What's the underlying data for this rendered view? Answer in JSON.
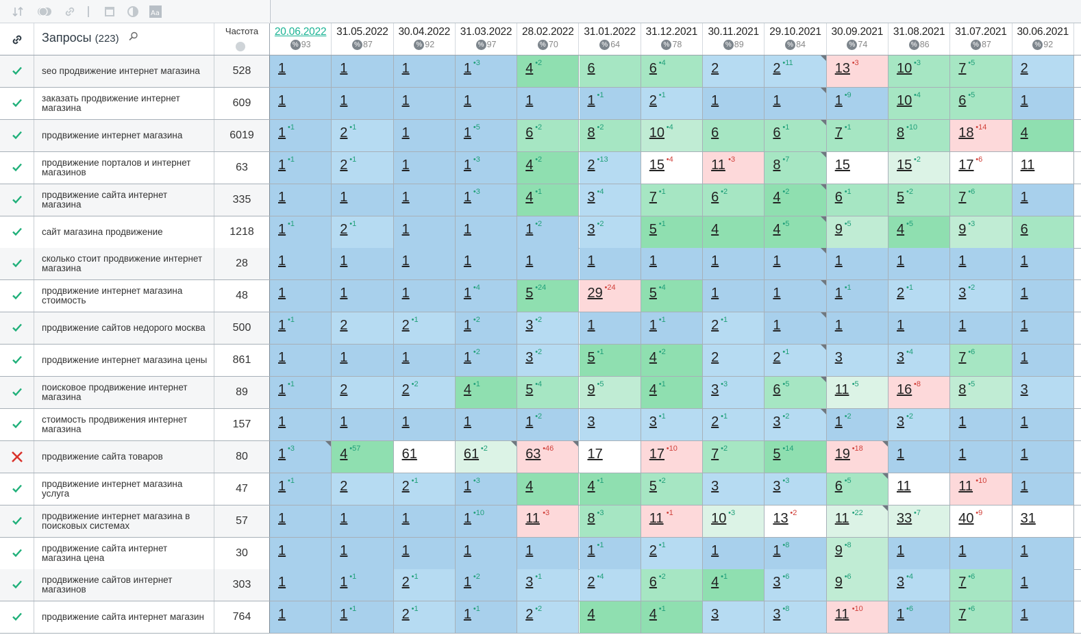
{
  "toolbar": {
    "icons": [
      "sort-icon",
      "toggle-icon",
      "link-icon",
      "calendar-icon",
      "contrast-icon",
      "font-icon"
    ]
  },
  "header": {
    "queries_label": "Запросы",
    "queries_count": "(223)",
    "frequency_label": "Частота",
    "dates": [
      {
        "date": "20.06.2022",
        "pct": "93",
        "active": true
      },
      {
        "date": "31.05.2022",
        "pct": "87"
      },
      {
        "date": "30.04.2022",
        "pct": "92"
      },
      {
        "date": "31.03.2022",
        "pct": "97"
      },
      {
        "date": "28.02.2022",
        "pct": "70"
      },
      {
        "date": "31.01.2022",
        "pct": "64"
      },
      {
        "date": "31.12.2021",
        "pct": "78"
      },
      {
        "date": "30.11.2021",
        "pct": "89"
      },
      {
        "date": "29.10.2021",
        "pct": "84"
      },
      {
        "date": "30.09.2021",
        "pct": "74"
      },
      {
        "date": "31.08.2021",
        "pct": "86"
      },
      {
        "date": "31.07.2021",
        "pct": "87"
      },
      {
        "date": "30.06.2021",
        "pct": "92"
      }
    ]
  },
  "rows": [
    {
      "status": "ok",
      "query": "seo продвижение интернет магазина",
      "freq": "528",
      "cells": [
        [
          "1",
          "",
          1
        ],
        [
          "1",
          "",
          1
        ],
        [
          "1",
          "",
          1
        ],
        [
          "1",
          "+3",
          1
        ],
        [
          "4",
          "+2",
          4
        ],
        [
          "6",
          "",
          5
        ],
        [
          "6",
          "+4",
          5
        ],
        [
          "2",
          "",
          2
        ],
        [
          "2",
          "+11",
          2
        ],
        [
          "13",
          "+3",
          8
        ],
        [
          "10",
          "+3",
          5
        ],
        [
          "7",
          "+5",
          5
        ],
        [
          "2",
          "",
          2
        ]
      ]
    },
    {
      "status": "ok",
      "query": "заказать продвижение интернет магазина",
      "freq": "609",
      "cells": [
        [
          "1",
          "",
          1
        ],
        [
          "1",
          "",
          1
        ],
        [
          "1",
          "",
          1
        ],
        [
          "1",
          "",
          1
        ],
        [
          "1",
          "",
          1
        ],
        [
          "1",
          "+1",
          1
        ],
        [
          "2",
          "+1",
          2
        ],
        [
          "1",
          "",
          1
        ],
        [
          "1",
          "",
          1
        ],
        [
          "1",
          "+9",
          1
        ],
        [
          "10",
          "+4",
          5
        ],
        [
          "6",
          "+5",
          5
        ],
        [
          "1",
          "",
          1
        ]
      ]
    },
    {
      "status": "ok",
      "query": "продвижение интернет магазина",
      "freq": "6019",
      "cells": [
        [
          "1",
          "+1",
          1
        ],
        [
          "2",
          "+1",
          2
        ],
        [
          "1",
          "",
          1
        ],
        [
          "1",
          "+5",
          1
        ],
        [
          "6",
          "+2",
          5
        ],
        [
          "8",
          "+2",
          5
        ],
        [
          "10",
          "+4",
          6
        ],
        [
          "6",
          "",
          5
        ],
        [
          "6",
          "+1",
          5
        ],
        [
          "7",
          "+1",
          5
        ],
        [
          "8",
          "+10",
          5
        ],
        [
          "18",
          "+14",
          8
        ],
        [
          "4",
          "",
          4
        ]
      ]
    },
    {
      "status": "ok",
      "query": "продвижение порталов и интернет магазинов",
      "freq": "63",
      "cells": [
        [
          "1",
          "+1",
          1
        ],
        [
          "2",
          "+1",
          2
        ],
        [
          "1",
          "",
          1
        ],
        [
          "1",
          "+3",
          1
        ],
        [
          "4",
          "+2",
          4
        ],
        [
          "2",
          "+13",
          2
        ],
        [
          "15",
          "+4",
          "w"
        ],
        [
          "11",
          "+3",
          8
        ],
        [
          "8",
          "+7",
          5
        ],
        [
          "15",
          "",
          "w"
        ],
        [
          "15",
          "+2",
          7
        ],
        [
          "17",
          "+6",
          "w"
        ],
        [
          "11",
          "",
          "w"
        ]
      ]
    },
    {
      "status": "ok",
      "query": "продвижение сайта интернет магазина",
      "freq": "335",
      "cells": [
        [
          "1",
          "",
          1
        ],
        [
          "1",
          "",
          1
        ],
        [
          "1",
          "",
          1
        ],
        [
          "1",
          "+3",
          1
        ],
        [
          "4",
          "+1",
          4
        ],
        [
          "3",
          "+4",
          2
        ],
        [
          "7",
          "+1",
          5
        ],
        [
          "6",
          "+2",
          5
        ],
        [
          "4",
          "+2",
          4
        ],
        [
          "6",
          "+1",
          5
        ],
        [
          "5",
          "+2",
          5
        ],
        [
          "7",
          "+6",
          5
        ],
        [
          "1",
          "",
          1
        ]
      ]
    },
    {
      "status": "ok",
      "query": "сайт магазина продвижение",
      "freq": "1218",
      "cells": [
        [
          "1",
          "+1",
          1
        ],
        [
          "2",
          "+1",
          2
        ],
        [
          "1",
          "",
          1
        ],
        [
          "1",
          "",
          1
        ],
        [
          "1",
          "+2",
          1
        ],
        [
          "3",
          "+2",
          2
        ],
        [
          "5",
          "+1",
          4
        ],
        [
          "4",
          "",
          4
        ],
        [
          "4",
          "+5",
          4
        ],
        [
          "9",
          "+5",
          6
        ],
        [
          "4",
          "+5",
          4
        ],
        [
          "9",
          "+3",
          6
        ],
        [
          "6",
          "",
          5
        ]
      ]
    },
    {
      "status": "ok",
      "query": "сколько стоит продвижение интернет магазина",
      "freq": "28",
      "cells": [
        [
          "1",
          "",
          1
        ],
        [
          "1",
          "",
          1
        ],
        [
          "1",
          "",
          1
        ],
        [
          "1",
          "",
          1
        ],
        [
          "1",
          "",
          1
        ],
        [
          "1",
          "",
          1
        ],
        [
          "1",
          "",
          1
        ],
        [
          "1",
          "",
          1
        ],
        [
          "1",
          "",
          1
        ],
        [
          "1",
          "",
          1
        ],
        [
          "1",
          "",
          1
        ],
        [
          "1",
          "",
          1
        ],
        [
          "1",
          "",
          1
        ]
      ]
    },
    {
      "status": "ok",
      "query": "продвижение интернет магазина стоимость",
      "freq": "48",
      "cells": [
        [
          "1",
          "",
          1
        ],
        [
          "1",
          "",
          1
        ],
        [
          "1",
          "",
          1
        ],
        [
          "1",
          "+4",
          1
        ],
        [
          "5",
          "+24",
          4
        ],
        [
          "29",
          "+24",
          8
        ],
        [
          "5",
          "+4",
          4
        ],
        [
          "1",
          "",
          1
        ],
        [
          "1",
          "",
          1
        ],
        [
          "1",
          "+1",
          1
        ],
        [
          "2",
          "+1",
          2
        ],
        [
          "3",
          "+2",
          2
        ],
        [
          "1",
          "",
          1
        ]
      ]
    },
    {
      "status": "ok",
      "query": "продвижение сайтов недорого москва",
      "freq": "500",
      "cells": [
        [
          "1",
          "+1",
          1
        ],
        [
          "2",
          "",
          2
        ],
        [
          "2",
          "+1",
          2
        ],
        [
          "1",
          "+2",
          1
        ],
        [
          "3",
          "+2",
          2
        ],
        [
          "1",
          "",
          1
        ],
        [
          "1",
          "+1",
          1
        ],
        [
          "2",
          "+1",
          2
        ],
        [
          "1",
          "",
          1
        ],
        [
          "1",
          "",
          1
        ],
        [
          "1",
          "",
          1
        ],
        [
          "1",
          "",
          1
        ],
        [
          "1",
          "",
          1
        ]
      ]
    },
    {
      "status": "ok",
      "query": "продвижение интернет магазина цены",
      "freq": "861",
      "cells": [
        [
          "1",
          "",
          1
        ],
        [
          "1",
          "",
          1
        ],
        [
          "1",
          "",
          1
        ],
        [
          "1",
          "+2",
          1
        ],
        [
          "3",
          "+2",
          2
        ],
        [
          "5",
          "+1",
          4
        ],
        [
          "4",
          "+2",
          4
        ],
        [
          "2",
          "",
          2
        ],
        [
          "2",
          "+1",
          2
        ],
        [
          "3",
          "",
          2
        ],
        [
          "3",
          "+4",
          2
        ],
        [
          "7",
          "+6",
          5
        ],
        [
          "1",
          "",
          1
        ]
      ]
    },
    {
      "status": "ok",
      "query": "поисковое продвижение интернет магазина",
      "freq": "89",
      "cells": [
        [
          "1",
          "+1",
          1
        ],
        [
          "2",
          "",
          2
        ],
        [
          "2",
          "+2",
          2
        ],
        [
          "4",
          "+1",
          4
        ],
        [
          "5",
          "+4",
          5
        ],
        [
          "9",
          "+5",
          6
        ],
        [
          "4",
          "+1",
          4
        ],
        [
          "3",
          "+3",
          2
        ],
        [
          "6",
          "+5",
          5
        ],
        [
          "11",
          "+5",
          7
        ],
        [
          "16",
          "+8",
          8
        ],
        [
          "8",
          "+5",
          6
        ],
        [
          "3",
          "",
          2
        ]
      ]
    },
    {
      "status": "ok",
      "query": "стоимость продвижения интернет магазина",
      "freq": "157",
      "cells": [
        [
          "1",
          "",
          1
        ],
        [
          "1",
          "",
          1
        ],
        [
          "1",
          "",
          1
        ],
        [
          "1",
          "",
          1
        ],
        [
          "1",
          "+2",
          1
        ],
        [
          "3",
          "",
          2
        ],
        [
          "3",
          "+1",
          2
        ],
        [
          "2",
          "+1",
          2
        ],
        [
          "3",
          "+2",
          2
        ],
        [
          "1",
          "+2",
          1
        ],
        [
          "3",
          "+2",
          2
        ],
        [
          "1",
          "",
          1
        ],
        [
          "1",
          "",
          1
        ]
      ]
    },
    {
      "status": "fail",
      "query": "продвижение сайта товаров",
      "freq": "80",
      "cells": [
        [
          "1",
          "+3",
          1
        ],
        [
          "4",
          "+57",
          4
        ],
        [
          "61",
          "",
          "w"
        ],
        [
          "61",
          "+2",
          7
        ],
        [
          "63",
          "+46",
          8
        ],
        [
          "17",
          "",
          "w"
        ],
        [
          "17",
          "+10",
          8
        ],
        [
          "7",
          "+2",
          5
        ],
        [
          "5",
          "+14",
          4
        ],
        [
          "19",
          "+18",
          8
        ],
        [
          "1",
          "",
          1
        ],
        [
          "1",
          "",
          1
        ],
        [
          "1",
          "",
          1
        ]
      ]
    },
    {
      "status": "ok",
      "query": "продвижение интернет магазина услуга",
      "freq": "47",
      "cells": [
        [
          "1",
          "+1",
          1
        ],
        [
          "2",
          "",
          2
        ],
        [
          "2",
          "+1",
          2
        ],
        [
          "1",
          "+3",
          1
        ],
        [
          "4",
          "",
          4
        ],
        [
          "4",
          "+1",
          4
        ],
        [
          "5",
          "+2",
          5
        ],
        [
          "3",
          "",
          2
        ],
        [
          "3",
          "+3",
          2
        ],
        [
          "6",
          "+5",
          5
        ],
        [
          "11",
          "",
          "w"
        ],
        [
          "11",
          "+10",
          8
        ],
        [
          "1",
          "",
          1
        ]
      ]
    },
    {
      "status": "ok",
      "query": "продвижение интернет магазина в поисковых системах",
      "freq": "57",
      "cells": [
        [
          "1",
          "",
          1
        ],
        [
          "1",
          "",
          1
        ],
        [
          "1",
          "",
          1
        ],
        [
          "1",
          "+10",
          1
        ],
        [
          "11",
          "+3",
          8
        ],
        [
          "8",
          "+3",
          5
        ],
        [
          "11",
          "+1",
          8
        ],
        [
          "10",
          "+3",
          7
        ],
        [
          "13",
          "+2",
          "w"
        ],
        [
          "11",
          "+22",
          7
        ],
        [
          "33",
          "+7",
          7
        ],
        [
          "40",
          "+9",
          "w"
        ],
        [
          "31",
          "",
          "w"
        ]
      ]
    },
    {
      "status": "ok",
      "query": "продвижение сайта интернет магазина цена",
      "freq": "30",
      "cells": [
        [
          "1",
          "",
          1
        ],
        [
          "1",
          "",
          1
        ],
        [
          "1",
          "",
          1
        ],
        [
          "1",
          "",
          1
        ],
        [
          "1",
          "",
          1
        ],
        [
          "1",
          "+1",
          1
        ],
        [
          "2",
          "+1",
          2
        ],
        [
          "1",
          "",
          1
        ],
        [
          "1",
          "+8",
          1
        ],
        [
          "9",
          "+8",
          6
        ],
        [
          "1",
          "",
          1
        ],
        [
          "1",
          "",
          1
        ],
        [
          "1",
          "",
          1
        ]
      ]
    },
    {
      "status": "ok",
      "query": "продвижение сайтов интернет магазинов",
      "freq": "303",
      "cells": [
        [
          "1",
          "",
          1
        ],
        [
          "1",
          "+1",
          1
        ],
        [
          "2",
          "+1",
          2
        ],
        [
          "1",
          "+2",
          1
        ],
        [
          "3",
          "+1",
          2
        ],
        [
          "2",
          "+4",
          2
        ],
        [
          "6",
          "+2",
          5
        ],
        [
          "4",
          "+1",
          4
        ],
        [
          "3",
          "+6",
          2
        ],
        [
          "9",
          "+6",
          6
        ],
        [
          "3",
          "+4",
          2
        ],
        [
          "7",
          "+6",
          5
        ],
        [
          "1",
          "",
          1
        ]
      ]
    },
    {
      "status": "ok",
      "query": "продвижение сайта интернет магазин",
      "freq": "764",
      "cells": [
        [
          "1",
          "",
          1
        ],
        [
          "1",
          "+1",
          1
        ],
        [
          "2",
          "+1",
          2
        ],
        [
          "1",
          "+1",
          1
        ],
        [
          "2",
          "+2",
          2
        ],
        [
          "4",
          "",
          4
        ],
        [
          "4",
          "+1",
          4
        ],
        [
          "3",
          "",
          2
        ],
        [
          "3",
          "+8",
          2
        ],
        [
          "11",
          "+10",
          8
        ],
        [
          "1",
          "+6",
          1
        ],
        [
          "7",
          "+6",
          5
        ],
        [
          "1",
          "",
          1
        ]
      ]
    }
  ]
}
